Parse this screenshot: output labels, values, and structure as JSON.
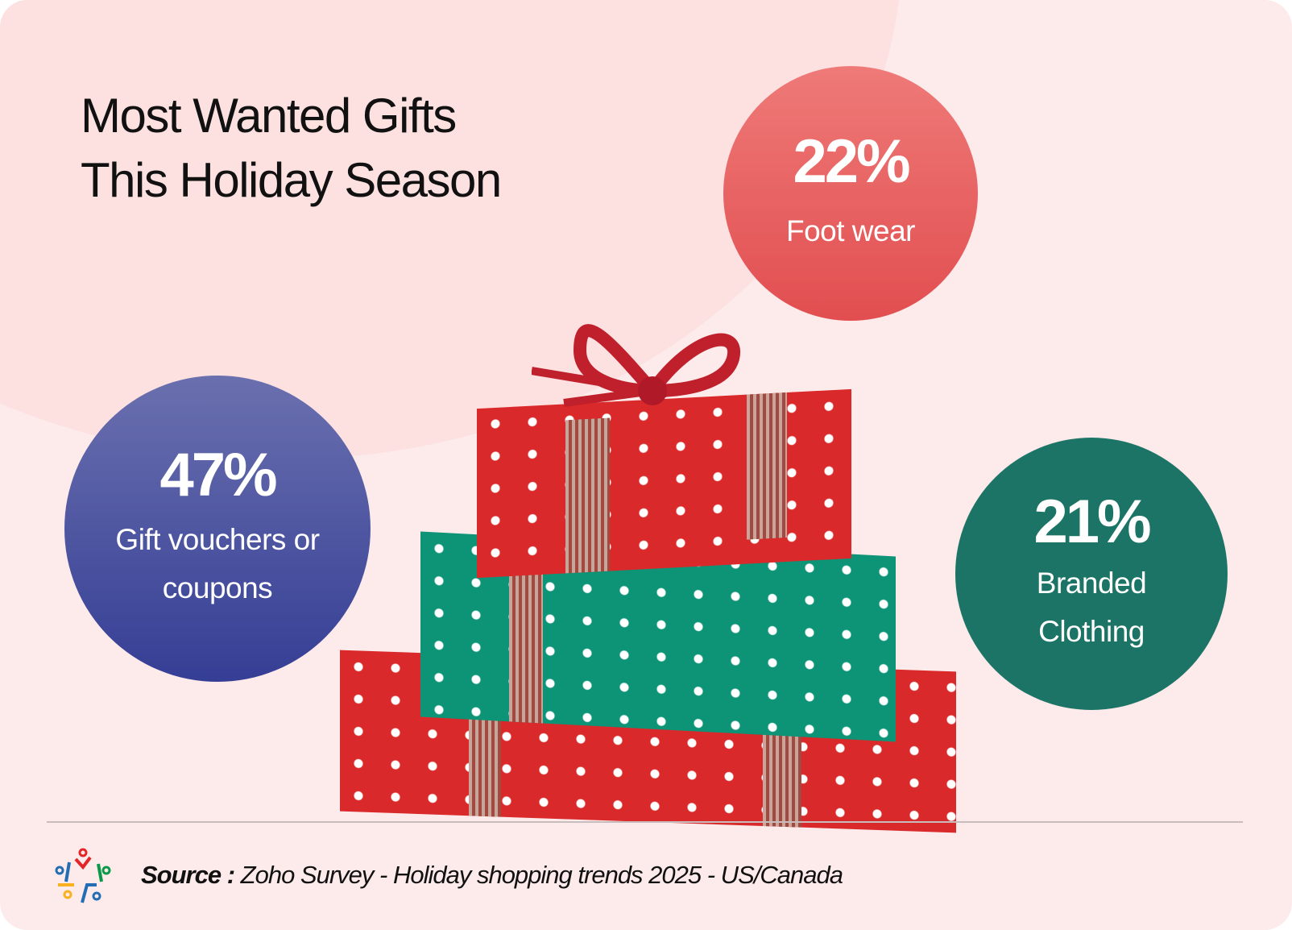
{
  "title": {
    "line1": "Most Wanted Gifts",
    "line2": "This Holiday Season"
  },
  "stats": [
    {
      "percent": "22%",
      "label": "Foot wear",
      "color": "#e8605f"
    },
    {
      "percent": "47%",
      "label_line1": "Gift vouchers or",
      "label_line2": "coupons",
      "color": "#4a4f9f"
    },
    {
      "percent": "21%",
      "label_line1": "Branded",
      "label_line2": "Clothing",
      "color": "#1b7466"
    }
  ],
  "footer": {
    "source_label": "Source :",
    "source_text": "Zoho Survey - Holiday shopping trends 2025  - US/Canada",
    "logo": "zoho-survey-logo"
  }
}
